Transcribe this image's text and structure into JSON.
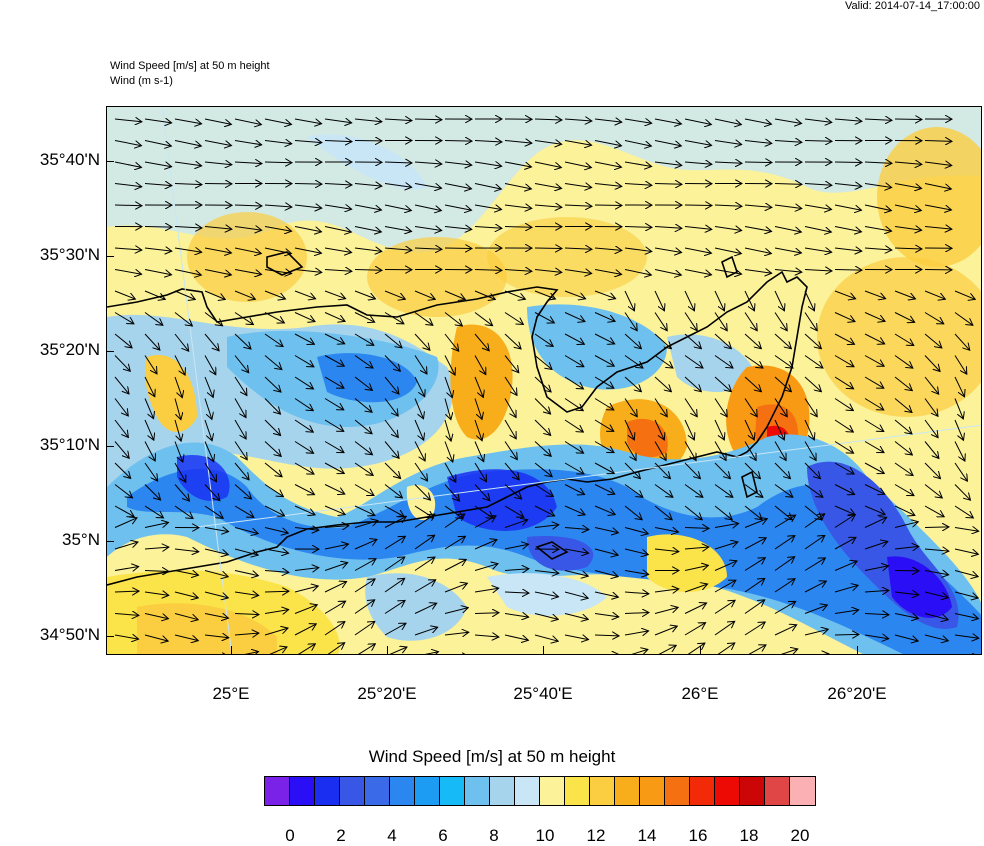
{
  "valid": "Valid: 2014-07-14_17:00:00",
  "title_line1": "Wind Speed [m/s] at 50 m height",
  "title_line2": "Wind   (m s-1)",
  "lat_labels": [
    "35°40'N",
    "35°30'N",
    "35°20'N",
    "35°10'N",
    "35°N",
    "34°50'N"
  ],
  "lon_labels": [
    "25°E",
    "25°20'E",
    "25°40'E",
    "26°E",
    "26°20'E"
  ],
  "colorbar": {
    "title": "Wind Speed [m/s] at 50 m height",
    "colors": [
      "#7b22e8",
      "#2a0ef5",
      "#1a2ef2",
      "#3857e6",
      "#3a6ae8",
      "#2c86f0",
      "#1c9cf2",
      "#16baf7",
      "#6ec0ee",
      "#a6d4ec",
      "#c8e6f6",
      "#fbf29a",
      "#fbe34a",
      "#fbcd40",
      "#f8ae1a",
      "#f89a14",
      "#f47010",
      "#f22a08",
      "#ee0a04",
      "#cc0606",
      "#e04646",
      "#fbb0b4"
    ],
    "labels": [
      "0",
      "2",
      "4",
      "6",
      "8",
      "10",
      "12",
      "14",
      "16",
      "18",
      "20"
    ]
  }
}
